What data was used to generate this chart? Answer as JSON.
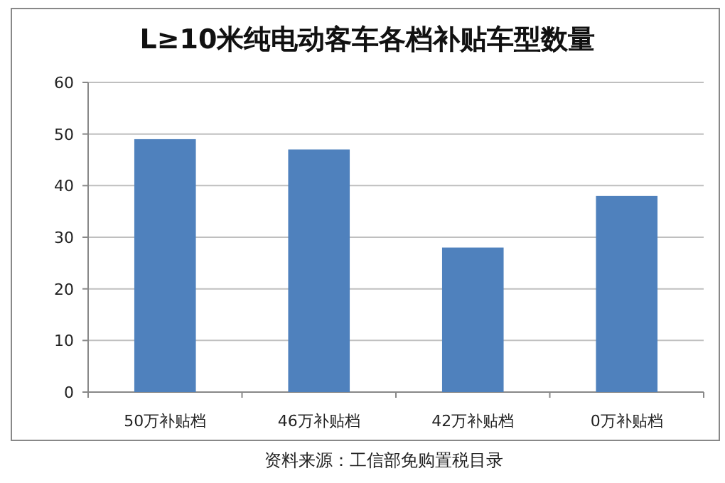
{
  "chart_data": {
    "type": "bar",
    "title": "L≥10米纯电动客车各档补贴车型数量",
    "categories": [
      "50万补贴档",
      "46万补贴档",
      "42万补贴档",
      "0万补贴档"
    ],
    "values": [
      49,
      47,
      28,
      38
    ],
    "color": "#4f81bd",
    "ylim": [
      0,
      60
    ],
    "yticks": [
      0,
      10,
      20,
      30,
      40,
      50,
      60
    ],
    "grid": "y",
    "annotations": [
      "资料来源：工信部免购置税目录"
    ]
  }
}
